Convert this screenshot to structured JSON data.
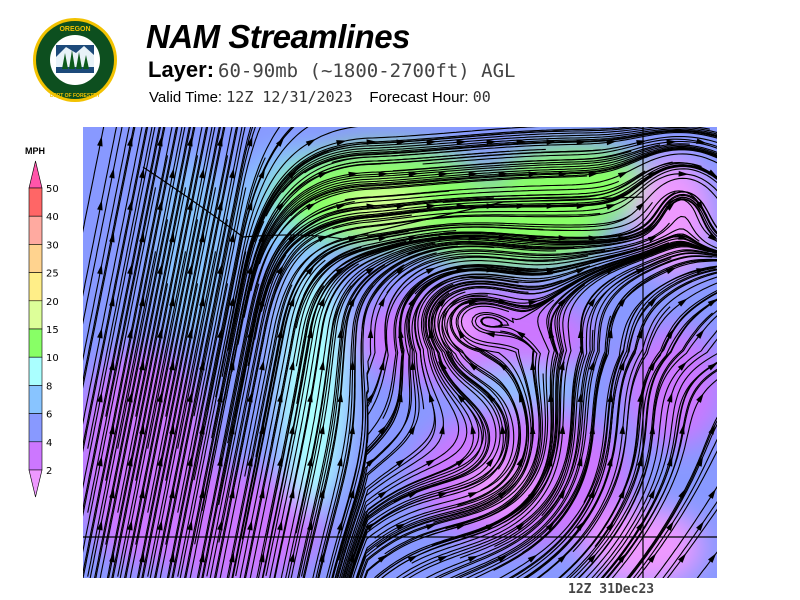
{
  "header": {
    "title": "NAM Streamlines",
    "layer_label": "Layer:",
    "layer_value": "60-90mb (~1800-2700ft) AGL",
    "valid_label": "Valid Time:",
    "valid_value": "12Z 12/31/2023",
    "forecast_label": "Forecast Hour:",
    "forecast_value": "00"
  },
  "logo": {
    "text_top": "OREGON",
    "text_bottom": "DEPARTMENT OF FORESTRY"
  },
  "legend": {
    "unit": "MPH",
    "levels": [
      "50",
      "40",
      "30",
      "25",
      "20",
      "15",
      "10",
      "8",
      "6",
      "4",
      "2"
    ],
    "colors": [
      "#ff55aa",
      "#ff6666",
      "#ffaaa0",
      "#ffd38f",
      "#ffee88",
      "#ddff99",
      "#88ff66",
      "#aaffff",
      "#88c4ff",
      "#8899ff",
      "#cc77ff",
      "#ee99ff"
    ]
  },
  "map": {
    "layer": "streamlines over wind speed shading"
  },
  "footer": {
    "timestamp": "12Z 31Dec23"
  }
}
